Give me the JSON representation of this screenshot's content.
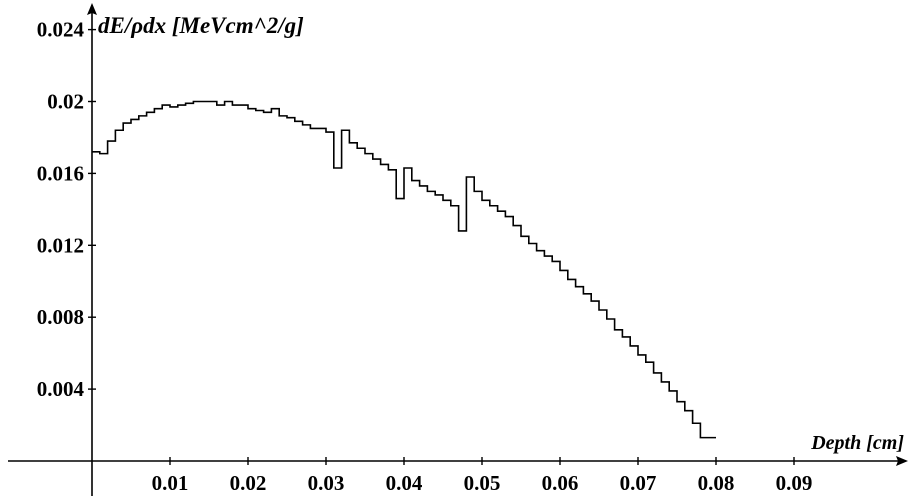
{
  "chart_data": {
    "type": "line",
    "step": true,
    "title": "",
    "xlabel": "Depth [cm]",
    "ylabel": "dE/ρdx [MeVcm^2/g]",
    "xlim": [
      0,
      0.1
    ],
    "ylim": [
      0,
      0.025
    ],
    "grid": false,
    "x_ticks": [
      "0.01",
      "0.02",
      "0.03",
      "0.04",
      "0.05",
      "0.06",
      "0.07",
      "0.08",
      "0.09"
    ],
    "y_ticks": [
      "0.004",
      "0.008",
      "0.012",
      "0.016",
      "0.02",
      "0.024"
    ],
    "bin_width": 0.001,
    "x_start": 0,
    "series": [
      {
        "values": [
          0.0172,
          0.0171,
          0.0178,
          0.0184,
          0.0188,
          0.019,
          0.0192,
          0.0194,
          0.0196,
          0.0198,
          0.0197,
          0.0198,
          0.0199,
          0.02,
          0.02,
          0.02,
          0.0198,
          0.02,
          0.0198,
          0.0198,
          0.0196,
          0.0195,
          0.0194,
          0.0196,
          0.0192,
          0.0191,
          0.0189,
          0.0187,
          0.0185,
          0.0185,
          0.0183,
          0.0163,
          0.0184,
          0.0177,
          0.0174,
          0.0171,
          0.0168,
          0.0165,
          0.0162,
          0.0146,
          0.0163,
          0.0156,
          0.0153,
          0.015,
          0.0148,
          0.0145,
          0.0142,
          0.0128,
          0.0158,
          0.015,
          0.0145,
          0.0142,
          0.0139,
          0.0136,
          0.0131,
          0.0125,
          0.0121,
          0.0117,
          0.0114,
          0.0111,
          0.0106,
          0.0101,
          0.0097,
          0.0093,
          0.0089,
          0.0084,
          0.0079,
          0.0073,
          0.0069,
          0.0064,
          0.0059,
          0.0055,
          0.0049,
          0.0044,
          0.0039,
          0.0033,
          0.0028,
          0.0021,
          0.0013,
          0.0013
        ]
      }
    ]
  }
}
